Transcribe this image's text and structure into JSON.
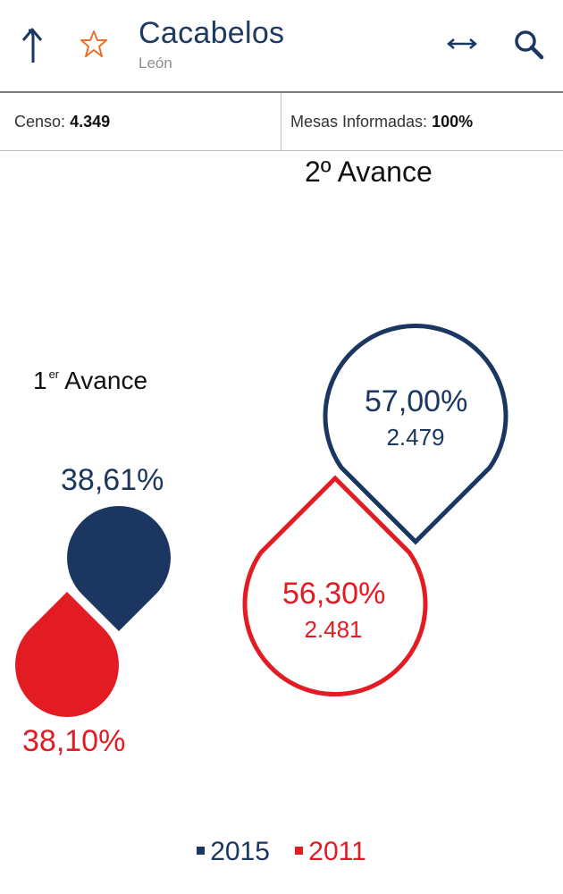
{
  "header": {
    "title": "Cacabelos",
    "subtitle": "León",
    "icons": [
      "back-arrow-icon",
      "star-icon",
      "expand-horizontal-icon",
      "search-icon"
    ]
  },
  "info": {
    "censo_label": "Censo:",
    "censo_value": "4.349",
    "mesas_label": "Mesas Informadas:",
    "mesas_value": "100%"
  },
  "headings": {
    "second": "2º Avance",
    "first_num": "1",
    "first_sup": "er",
    "first_word": "Avance"
  },
  "avance1": {
    "y2015_pct": "38,61%",
    "y2011_pct": "38,10%"
  },
  "avance2": {
    "y2015_pct": "57,00%",
    "y2015_count": "2.479",
    "y2011_pct": "56,30%",
    "y2011_count": "2.481"
  },
  "legend": {
    "y2015": "2015",
    "y2011": "2011"
  },
  "colors": {
    "y2015": "#1b3761",
    "y2011": "#e31b23",
    "star": "#e8702a"
  }
}
